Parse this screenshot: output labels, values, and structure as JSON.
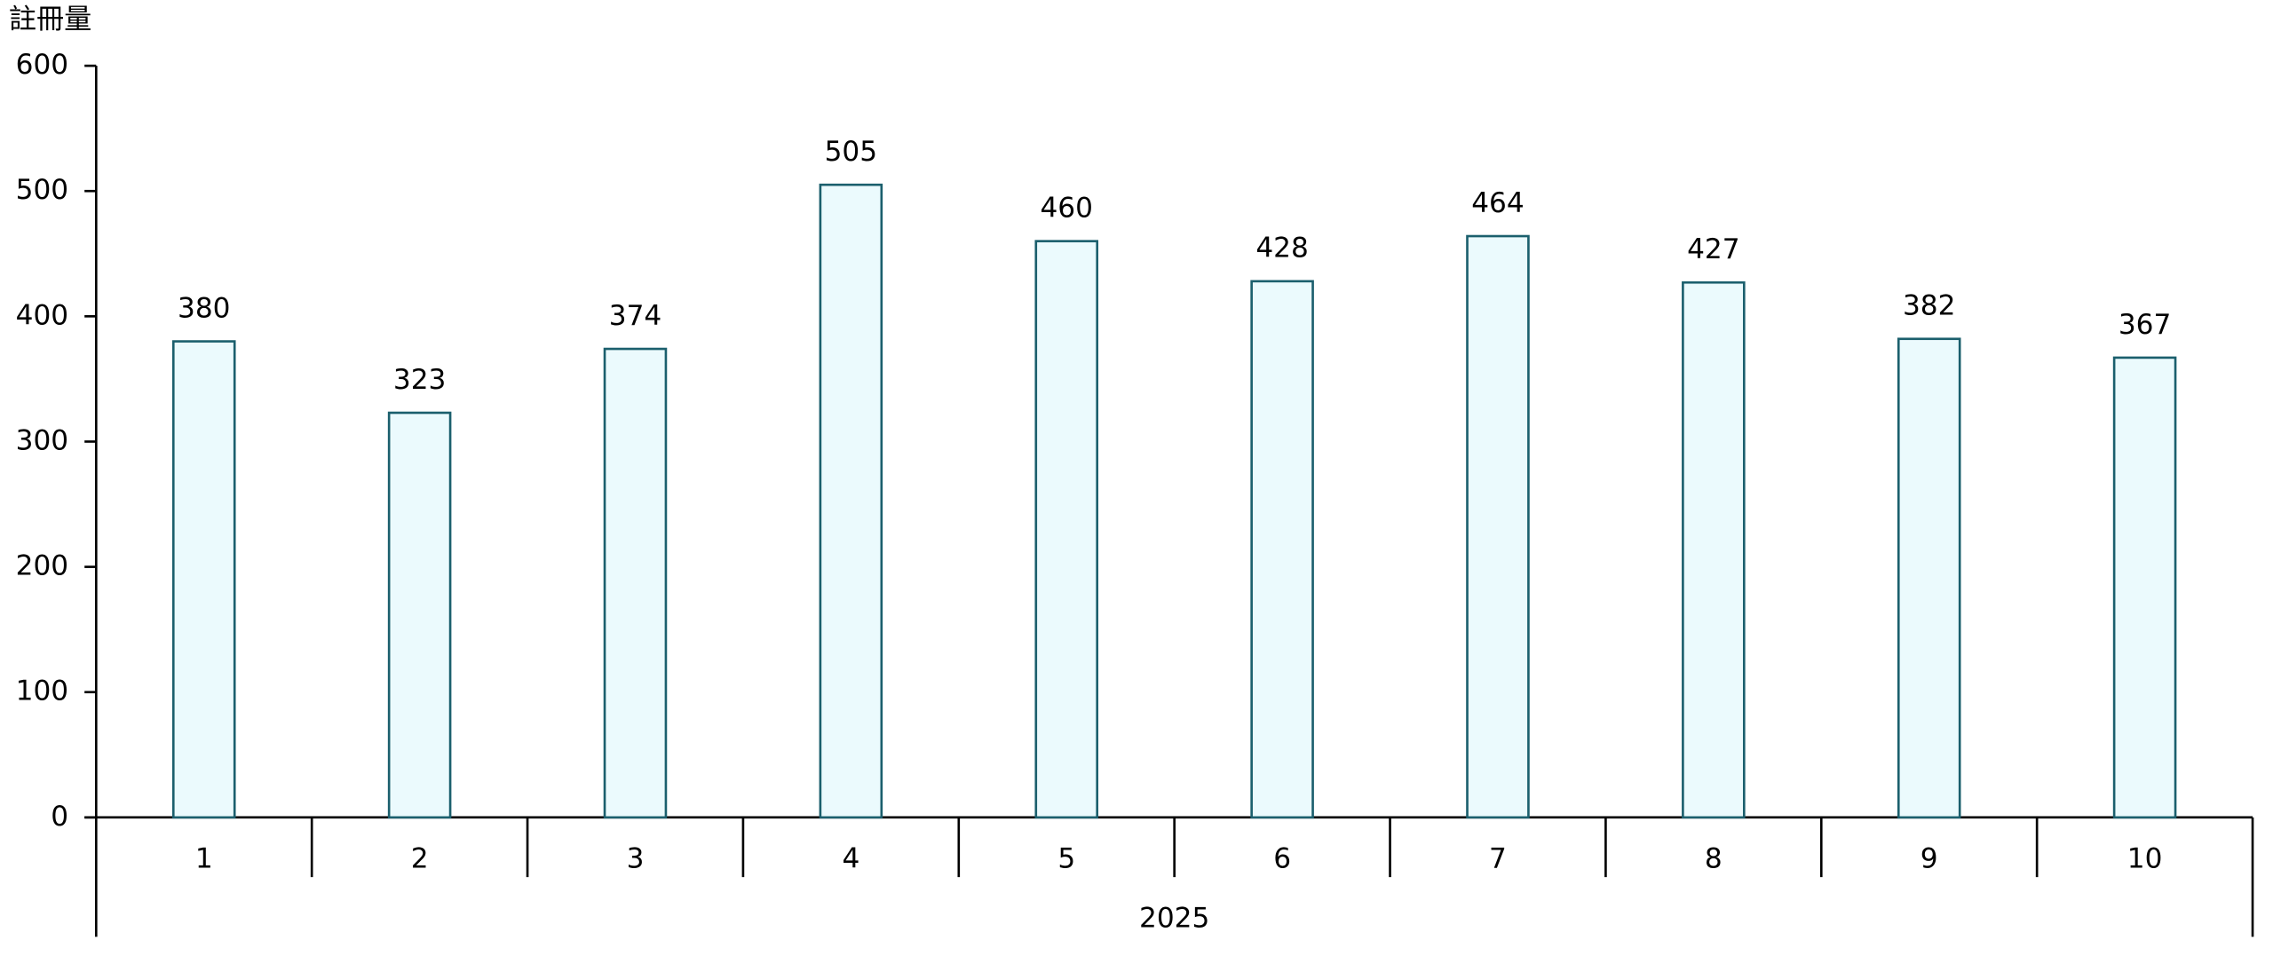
{
  "chart_data": {
    "type": "bar",
    "y_label": "註冊量",
    "categories": [
      "1",
      "2",
      "3",
      "4",
      "5",
      "6",
      "7",
      "8",
      "9",
      "10"
    ],
    "group_label": "2025",
    "values": [
      380,
      323,
      374,
      505,
      460,
      428,
      464,
      427,
      382,
      367
    ],
    "color": "#ebfafd",
    "edge_color": "#1b5f6d",
    "ylim": [
      0,
      600
    ],
    "yticks": [
      0,
      100,
      200,
      300,
      400,
      500,
      600
    ],
    "grid": false
  }
}
